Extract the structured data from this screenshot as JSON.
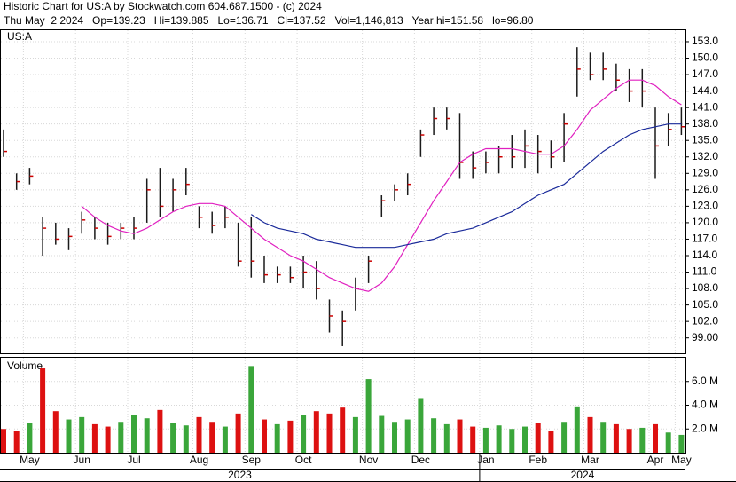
{
  "chart_data": {
    "type": "ohlc",
    "title": "Historic Chart for US:A by Stockwatch.com 604.687.1500 - (c) 2024",
    "subtitle": "Thu May  2 2024   Op=139.23   Hi=139.885   Lo=136.71   Cl=137.52   Vol=1,146,813   Year hi=151.58   lo=96.80",
    "symbol": "US:A",
    "categories": [
      null,
      null,
      "May",
      null,
      null,
      null,
      "Jun",
      null,
      null,
      null,
      "Jul",
      null,
      null,
      null,
      null,
      "Aug",
      null,
      null,
      null,
      "Sep",
      null,
      null,
      null,
      "Oct",
      null,
      null,
      null,
      null,
      "Nov",
      null,
      null,
      null,
      "Dec",
      null,
      null,
      null,
      null,
      "Jan",
      null,
      null,
      null,
      "Feb",
      null,
      null,
      null,
      "Mar",
      null,
      null,
      null,
      null,
      "Apr",
      null,
      "May"
    ],
    "years": [
      "2023",
      "2024"
    ],
    "high": [
      137,
      129,
      130,
      121,
      120,
      119,
      122,
      121,
      120,
      120,
      121,
      128,
      130,
      128,
      130,
      123,
      122,
      123,
      120,
      121,
      114,
      112,
      112,
      114,
      113,
      106,
      104,
      110,
      114,
      125,
      127,
      129,
      137,
      141,
      141,
      140,
      133,
      133,
      134,
      136,
      137,
      136,
      135,
      140,
      152,
      151,
      151,
      149,
      148,
      148,
      141,
      140,
      141
    ],
    "low": [
      132,
      126,
      127,
      114,
      116,
      115,
      118,
      117,
      116,
      117,
      117,
      120,
      121,
      122,
      125,
      119,
      118,
      119,
      112,
      110,
      109,
      109,
      109,
      108,
      106,
      100,
      97.5,
      104,
      109,
      121,
      124,
      125,
      132,
      136,
      137,
      128,
      128,
      129,
      129,
      130,
      130,
      129,
      130,
      131,
      143,
      146,
      146,
      144,
      142,
      141,
      128,
      134,
      136
    ],
    "close": [
      133,
      127.5,
      128.5,
      119,
      117,
      117.5,
      120.5,
      119,
      117.5,
      119,
      119,
      126,
      123,
      126,
      127,
      121,
      119.5,
      121,
      113,
      113,
      110.5,
      110.5,
      110,
      111,
      108,
      103,
      102,
      108,
      113,
      124,
      126,
      127,
      136,
      139,
      139,
      131,
      130,
      131,
      132,
      132,
      134,
      133,
      132,
      138,
      148,
      147,
      148,
      146,
      144,
      144,
      134,
      137,
      137.5
    ],
    "bar_color": "#1a1a1a",
    "close_color": "#cc0000",
    "series": [
      {
        "color": "#e020c0",
        "values": [
          null,
          null,
          null,
          null,
          null,
          null,
          123,
          121,
          119.5,
          118.5,
          118,
          119,
          120.5,
          122,
          123,
          123.5,
          123.5,
          123,
          121,
          119,
          117,
          115.5,
          114,
          113,
          111.5,
          110,
          109,
          108,
          107.5,
          109,
          112,
          116,
          120,
          124,
          127.5,
          131,
          132.5,
          133.5,
          133.5,
          133.5,
          133,
          132.5,
          132.5,
          134,
          137,
          140.5,
          142.5,
          144.5,
          146,
          146,
          145,
          143,
          141.5
        ]
      },
      {
        "color": "#1a2a9a",
        "values": [
          null,
          null,
          null,
          null,
          null,
          null,
          null,
          null,
          null,
          null,
          null,
          null,
          null,
          null,
          null,
          null,
          null,
          null,
          null,
          121.5,
          120,
          119,
          118.5,
          118,
          117,
          116.5,
          116,
          115.5,
          115.5,
          115.5,
          115.5,
          116,
          116.5,
          117,
          118,
          118.5,
          119,
          120,
          121,
          122,
          123.5,
          125,
          126,
          127,
          129,
          131,
          133,
          134.5,
          136,
          137,
          137.5,
          138,
          138
        ]
      }
    ],
    "ylim": [
      96.2,
      155.1
    ],
    "yticks": [
      {
        "value": 99,
        "label": "99.00"
      },
      {
        "value": 102,
        "label": "102.0"
      },
      {
        "value": 105,
        "label": "105.0"
      },
      {
        "value": 108,
        "label": "108.0"
      },
      {
        "value": 111,
        "label": "111.0"
      },
      {
        "value": 114,
        "label": "114.0"
      },
      {
        "value": 117,
        "label": "117.0"
      },
      {
        "value": 120,
        "label": "120.0"
      },
      {
        "value": 123,
        "label": "123.0"
      },
      {
        "value": 126,
        "label": "126.0"
      },
      {
        "value": 129,
        "label": "129.0"
      },
      {
        "value": 132,
        "label": "132.0"
      },
      {
        "value": 135,
        "label": "135.0"
      },
      {
        "value": 138,
        "label": "138.0"
      },
      {
        "value": 141,
        "label": "141.0"
      },
      {
        "value": 144,
        "label": "144.0"
      },
      {
        "value": 147,
        "label": "147.0"
      },
      {
        "value": 150,
        "label": "150.0"
      },
      {
        "value": 153,
        "label": "153.0"
      }
    ],
    "grid": true,
    "volume": {
      "title": "Volume",
      "values": [
        2.0,
        1.8,
        2.5,
        7.1,
        3.5,
        2.8,
        3.0,
        2.4,
        2.2,
        2.6,
        3.2,
        2.9,
        3.6,
        2.5,
        2.3,
        3.0,
        2.6,
        2.2,
        3.3,
        7.3,
        2.8,
        2.4,
        2.7,
        3.2,
        3.5,
        3.3,
        3.8,
        3.0,
        6.2,
        3.1,
        2.6,
        2.8,
        4.6,
        2.9,
        2.4,
        2.8,
        2.2,
        2.1,
        2.3,
        2.0,
        2.2,
        2.5,
        1.8,
        2.6,
        3.9,
        3.0,
        2.6,
        2.4,
        2.0,
        2.1,
        2.4,
        1.7,
        1.5
      ],
      "up_color": "#3aa63a",
      "down_color": "#dd1111",
      "ylim": [
        0,
        8
      ],
      "yticks": [
        {
          "value": 2,
          "label": "2.0 M"
        },
        {
          "value": 4,
          "label": "4.0 M"
        },
        {
          "value": 6,
          "label": "6.0 M"
        }
      ]
    }
  }
}
